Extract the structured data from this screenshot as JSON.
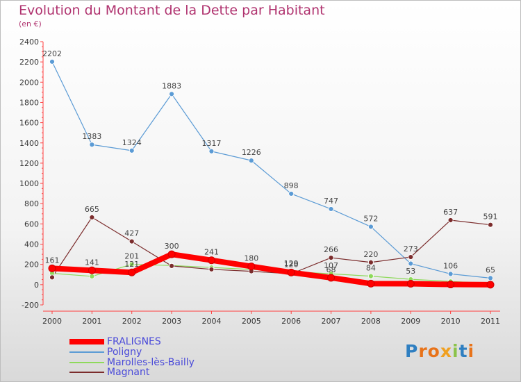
{
  "title": "Evolution du Montant de la Dette par Habitant",
  "subtitle": "(en €)",
  "logo": "Proxiti",
  "colors": {
    "title": "#b0336f",
    "legend_text": "#4a4ad9",
    "FRALIGNES": "#ff0000",
    "Poligny": "#5b9bd5",
    "Marolles-lès-Bailly": "#8ed95b",
    "Magnant": "#7b2c2c"
  },
  "chart_data": {
    "type": "line",
    "title": "Evolution du Montant de la Dette par Habitant",
    "subtitle": "(en €)",
    "xlabel": "",
    "ylabel": "",
    "categories": [
      "2000",
      "2001",
      "2002",
      "2003",
      "2004",
      "2005",
      "2006",
      "2007",
      "2008",
      "2009",
      "2010",
      "2011"
    ],
    "ylim": [
      -200,
      2400
    ],
    "yticks": [
      -200,
      0,
      200,
      400,
      600,
      800,
      1000,
      1200,
      1400,
      1600,
      1800,
      2000,
      2200,
      2400
    ],
    "grid": false,
    "legend": "bottom-left",
    "series": [
      {
        "name": "FRALIGNES",
        "color": "#ff0000",
        "values": [
          161,
          141,
          121,
          300,
          241,
          180,
          120,
          68,
          10,
          9,
          2,
          0
        ]
      },
      {
        "name": "Poligny",
        "color": "#5b9bd5",
        "values": [
          2202,
          1383,
          1324,
          1883,
          1317,
          1226,
          898,
          747,
          572,
          208,
          106,
          65
        ]
      },
      {
        "name": "Marolles-lès-Bailly",
        "color": "#8ed95b",
        "values": [
          112,
          82,
          201,
          189,
          170,
          150,
          129,
          107,
          84,
          53,
          32,
          13
        ]
      },
      {
        "name": "Magnant",
        "color": "#7b2c2c",
        "values": [
          72,
          665,
          427,
          185,
          151,
          132,
          107,
          266,
          220,
          273,
          637,
          591
        ]
      }
    ],
    "value_labels": {
      "FRALIGNES": [
        "161",
        "141",
        "121",
        "300",
        "241",
        "180",
        "120",
        "68",
        "",
        "",
        "",
        ""
      ],
      "Poligny": [
        "2202",
        "1383",
        "1324",
        "1883",
        "1317",
        "1226",
        "898",
        "747",
        "572",
        "",
        "106",
        "65"
      ],
      "Marolles-lès-Bailly": [
        "",
        "",
        "201",
        "",
        "",
        "",
        "129",
        "107",
        "84",
        "53",
        "",
        ""
      ],
      "Magnant": [
        "",
        "665",
        "427",
        "",
        "",
        "",
        "",
        "266",
        "220",
        "273",
        "637",
        "591"
      ]
    }
  }
}
